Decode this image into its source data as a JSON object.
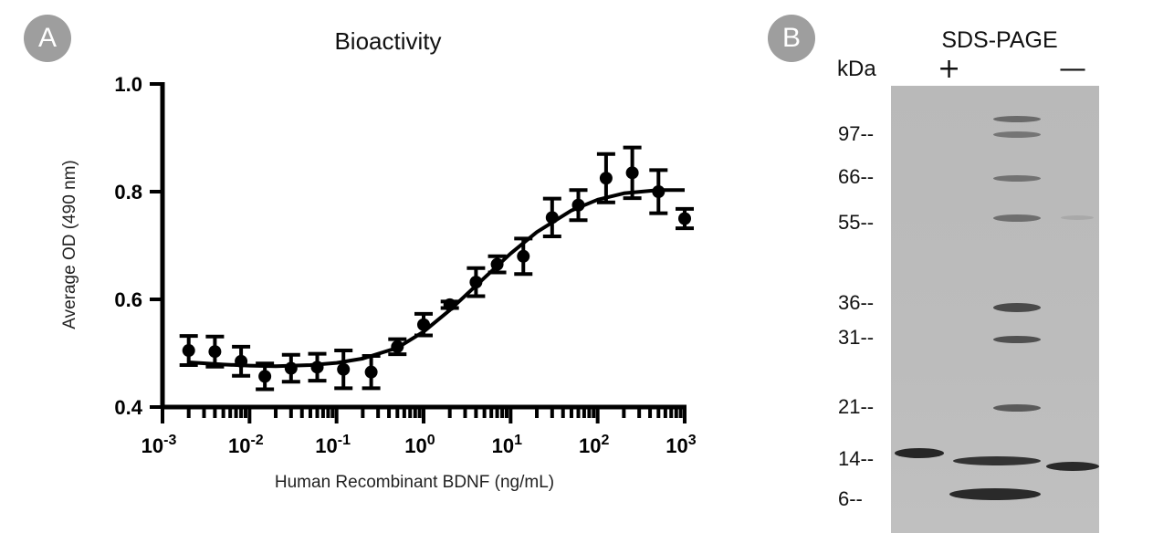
{
  "panel_a": {
    "badge": "A",
    "chart_data": {
      "type": "scatter",
      "title": "Bioactivity",
      "xlabel": "Human Recombinant BDNF (ng/mL)",
      "ylabel": "Average OD (490 nm)",
      "x_scale": "log",
      "xlim": [
        0.001,
        1000
      ],
      "ylim": [
        0.4,
        1.0
      ],
      "yticks": [
        "0.4",
        "0.6",
        "0.8",
        "1.0"
      ],
      "xticks": [
        {
          "base": "10",
          "exp": "-3"
        },
        {
          "base": "10",
          "exp": "-2"
        },
        {
          "base": "10",
          "exp": "-1"
        },
        {
          "base": "10",
          "exp": "0"
        },
        {
          "base": "10",
          "exp": "1"
        },
        {
          "base": "10",
          "exp": "2"
        },
        {
          "base": "10",
          "exp": "3"
        }
      ],
      "grid": false,
      "points": [
        {
          "x": 0.002,
          "y": 0.505,
          "err": 0.027
        },
        {
          "x": 0.004,
          "y": 0.503,
          "err": 0.028
        },
        {
          "x": 0.008,
          "y": 0.485,
          "err": 0.027
        },
        {
          "x": 0.015,
          "y": 0.457,
          "err": 0.024
        },
        {
          "x": 0.03,
          "y": 0.472,
          "err": 0.025
        },
        {
          "x": 0.06,
          "y": 0.474,
          "err": 0.025
        },
        {
          "x": 0.12,
          "y": 0.47,
          "err": 0.035
        },
        {
          "x": 0.25,
          "y": 0.465,
          "err": 0.03
        },
        {
          "x": 0.5,
          "y": 0.512,
          "err": 0.014
        },
        {
          "x": 1.0,
          "y": 0.553,
          "err": 0.02
        },
        {
          "x": 2.0,
          "y": 0.59,
          "err": 0.006
        },
        {
          "x": 4.0,
          "y": 0.632,
          "err": 0.026
        },
        {
          "x": 7.0,
          "y": 0.665,
          "err": 0.015
        },
        {
          "x": 14.0,
          "y": 0.68,
          "err": 0.033
        },
        {
          "x": 30.0,
          "y": 0.752,
          "err": 0.035
        },
        {
          "x": 60.0,
          "y": 0.775,
          "err": 0.028
        },
        {
          "x": 125.0,
          "y": 0.825,
          "err": 0.045
        },
        {
          "x": 250.0,
          "y": 0.835,
          "err": 0.047
        },
        {
          "x": 500.0,
          "y": 0.8,
          "err": 0.04
        },
        {
          "x": 1000.0,
          "y": 0.75,
          "err": 0.018
        }
      ],
      "fit_curve": {
        "type": "sigmoid",
        "x": [
          0.002,
          0.005,
          0.01,
          0.02,
          0.05,
          0.1,
          0.2,
          0.5,
          1,
          2,
          5,
          10,
          20,
          50,
          100,
          200,
          500,
          1000
        ],
        "y": [
          0.483,
          0.479,
          0.477,
          0.476,
          0.478,
          0.482,
          0.49,
          0.51,
          0.54,
          0.58,
          0.64,
          0.685,
          0.725,
          0.765,
          0.785,
          0.797,
          0.803,
          0.803
        ]
      }
    }
  },
  "panel_b": {
    "badge": "B",
    "title": "SDS-PAGE",
    "unit_label": "kDa",
    "lanes": [
      "+",
      "—"
    ],
    "markers": [
      "97--",
      "66--",
      "55--",
      "36--",
      "31--",
      "21--",
      "14--",
      "6--"
    ],
    "band_color": "#1a1a1a",
    "gel_color": "#bcbcbc"
  }
}
